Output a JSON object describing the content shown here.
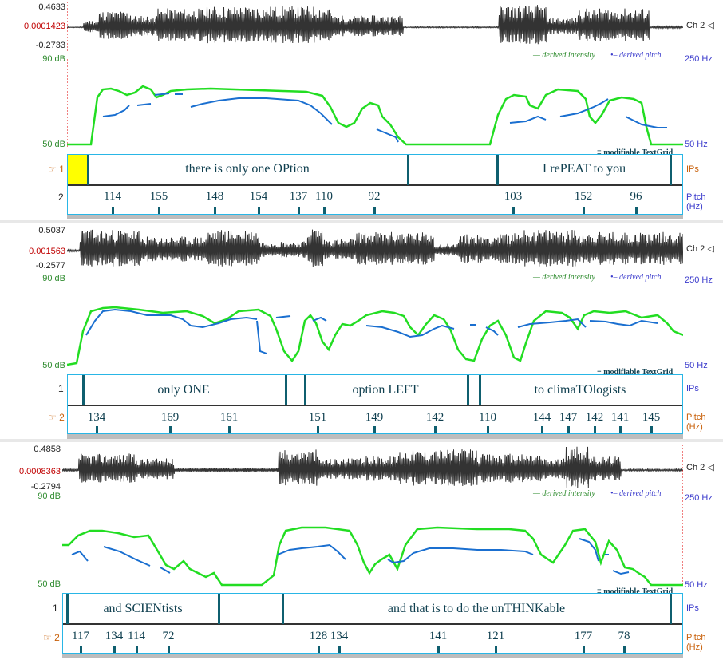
{
  "panels": [
    {
      "wave_top": "0.4633",
      "wave_mid": "0.0001423",
      "wave_bot": "-0.2733",
      "ch_label": "Ch 2",
      "db_top": "90 dB",
      "db_bot": "50 dB",
      "hz_top": "250 Hz",
      "hz_bot": "50 Hz",
      "legend_intensity": "derived intensity",
      "legend_pitch": "derived pitch",
      "textgrid_label": "modifiable TextGrid",
      "tier1_num": "1",
      "tier1_name": "IPs",
      "tier1_pointer": true,
      "tier2_num": "2",
      "tier2_name": "Pitch (Hz)",
      "tier2_pointer": false,
      "intervals": [
        {
          "text": "there is only one OPtion"
        },
        {
          "text": "I rePEAT to you"
        }
      ],
      "pitch_points": [
        "114",
        "155",
        "148",
        "154",
        "137",
        "110",
        "92",
        "103",
        "152",
        "96"
      ]
    },
    {
      "wave_top": "0.5037",
      "wave_mid": "0.001563",
      "wave_bot": "-0.2577",
      "ch_label": "Ch 2",
      "db_top": "90 dB",
      "db_bot": "50 dB",
      "hz_top": "250 Hz",
      "hz_bot": "50 Hz",
      "legend_intensity": "derived intensity",
      "legend_pitch": "derived pitch",
      "textgrid_label": "modifiable TextGrid",
      "tier1_num": "1",
      "tier1_name": "IPs",
      "tier1_pointer": false,
      "tier2_num": "2",
      "tier2_name": "Pitch (Hz)",
      "tier2_pointer": true,
      "intervals": [
        {
          "text": "only ONE"
        },
        {
          "text": "option LEFT"
        },
        {
          "text": "to climaTOlogists"
        }
      ],
      "pitch_points": [
        "134",
        "169",
        "161",
        "151",
        "149",
        "142",
        "110",
        "144",
        "147",
        "142",
        "141",
        "145"
      ]
    },
    {
      "wave_top": "0.4858",
      "wave_mid": "0.0008363",
      "wave_bot": "-0.2794",
      "ch_label": "Ch 2",
      "db_top": "90 dB",
      "db_bot": "50 dB",
      "hz_top": "250 Hz",
      "hz_bot": "50 Hz",
      "legend_intensity": "derived intensity",
      "legend_pitch": "derived pitch",
      "textgrid_label": "modifiable TextGrid",
      "tier1_num": "1",
      "tier1_name": "IPs",
      "tier1_pointer": false,
      "tier2_num": "2",
      "tier2_name": "Pitch (Hz)",
      "tier2_pointer": true,
      "intervals": [
        {
          "text": "and SCIENtists"
        },
        {
          "text": "and that is to do the unTHINKable"
        }
      ],
      "pitch_points": [
        "117",
        "134",
        "114",
        "72",
        "128",
        "134",
        "141",
        "121",
        "177",
        "78"
      ]
    }
  ],
  "colors": {
    "intensity": "#22dd22",
    "pitch": "#1a6fd0",
    "grid_border": "#29b6e6",
    "boundary": "#0f5f6f",
    "selection": "#ffff00"
  }
}
